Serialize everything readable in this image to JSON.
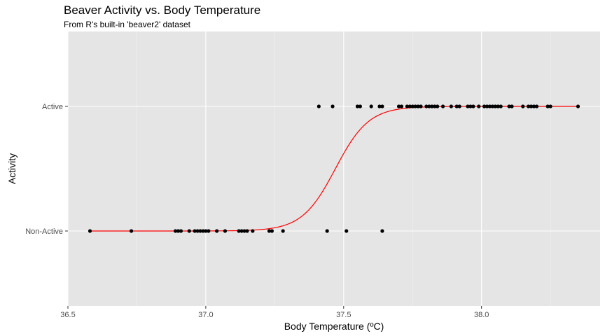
{
  "chart_data": {
    "type": "scatter",
    "title": "Beaver Activity vs. Body Temperature",
    "subtitle": "From R's built-in 'beaver2' dataset",
    "xlabel": "Body Temperature (ºC)",
    "ylabel": "Activity",
    "xlim": [
      36.5,
      38.43
    ],
    "x_ticks": [
      36.5,
      37.0,
      37.5,
      38.0
    ],
    "x_tick_labels": [
      "36.5",
      "37.0",
      "37.5",
      "38.0"
    ],
    "y_categories": [
      "Non-Active",
      "Active"
    ],
    "grid": true,
    "background": "#e5e5e5",
    "point_color": "#000000",
    "curve_color": "#ff0000",
    "points": [
      {
        "x": 36.58,
        "y": 0
      },
      {
        "x": 36.73,
        "y": 0
      },
      {
        "x": 36.89,
        "y": 0
      },
      {
        "x": 36.9,
        "y": 0
      },
      {
        "x": 36.91,
        "y": 0
      },
      {
        "x": 36.94,
        "y": 0
      },
      {
        "x": 36.96,
        "y": 0
      },
      {
        "x": 36.97,
        "y": 0
      },
      {
        "x": 36.98,
        "y": 0
      },
      {
        "x": 36.99,
        "y": 0
      },
      {
        "x": 37.0,
        "y": 0
      },
      {
        "x": 37.01,
        "y": 0
      },
      {
        "x": 37.04,
        "y": 0
      },
      {
        "x": 37.07,
        "y": 0
      },
      {
        "x": 37.12,
        "y": 0
      },
      {
        "x": 37.13,
        "y": 0
      },
      {
        "x": 37.14,
        "y": 0
      },
      {
        "x": 37.15,
        "y": 0
      },
      {
        "x": 37.17,
        "y": 0
      },
      {
        "x": 37.23,
        "y": 0
      },
      {
        "x": 37.24,
        "y": 0
      },
      {
        "x": 37.28,
        "y": 0
      },
      {
        "x": 37.44,
        "y": 0
      },
      {
        "x": 37.51,
        "y": 0
      },
      {
        "x": 37.64,
        "y": 0
      },
      {
        "x": 37.41,
        "y": 1
      },
      {
        "x": 37.46,
        "y": 1
      },
      {
        "x": 37.55,
        "y": 1
      },
      {
        "x": 37.56,
        "y": 1
      },
      {
        "x": 37.6,
        "y": 1
      },
      {
        "x": 37.63,
        "y": 1
      },
      {
        "x": 37.64,
        "y": 1
      },
      {
        "x": 37.7,
        "y": 1
      },
      {
        "x": 37.71,
        "y": 1
      },
      {
        "x": 37.73,
        "y": 1
      },
      {
        "x": 37.74,
        "y": 1
      },
      {
        "x": 37.75,
        "y": 1
      },
      {
        "x": 37.76,
        "y": 1
      },
      {
        "x": 37.77,
        "y": 1
      },
      {
        "x": 37.78,
        "y": 1
      },
      {
        "x": 37.8,
        "y": 1
      },
      {
        "x": 37.81,
        "y": 1
      },
      {
        "x": 37.82,
        "y": 1
      },
      {
        "x": 37.83,
        "y": 1
      },
      {
        "x": 37.84,
        "y": 1
      },
      {
        "x": 37.86,
        "y": 1
      },
      {
        "x": 37.89,
        "y": 1
      },
      {
        "x": 37.91,
        "y": 1
      },
      {
        "x": 37.92,
        "y": 1
      },
      {
        "x": 37.95,
        "y": 1
      },
      {
        "x": 37.96,
        "y": 1
      },
      {
        "x": 37.97,
        "y": 1
      },
      {
        "x": 37.99,
        "y": 1
      },
      {
        "x": 38.01,
        "y": 1
      },
      {
        "x": 38.02,
        "y": 1
      },
      {
        "x": 38.03,
        "y": 1
      },
      {
        "x": 38.04,
        "y": 1
      },
      {
        "x": 38.05,
        "y": 1
      },
      {
        "x": 38.06,
        "y": 1
      },
      {
        "x": 38.07,
        "y": 1
      },
      {
        "x": 38.1,
        "y": 1
      },
      {
        "x": 38.11,
        "y": 1
      },
      {
        "x": 38.15,
        "y": 1
      },
      {
        "x": 38.17,
        "y": 1
      },
      {
        "x": 38.18,
        "y": 1
      },
      {
        "x": 38.19,
        "y": 1
      },
      {
        "x": 38.2,
        "y": 1
      },
      {
        "x": 38.24,
        "y": 1
      },
      {
        "x": 38.25,
        "y": 1
      },
      {
        "x": 38.35,
        "y": 1
      }
    ],
    "fit_curve": {
      "type": "logistic",
      "midpoint": 37.47,
      "slope": 16.5,
      "x_range": [
        36.58,
        38.35
      ]
    }
  }
}
